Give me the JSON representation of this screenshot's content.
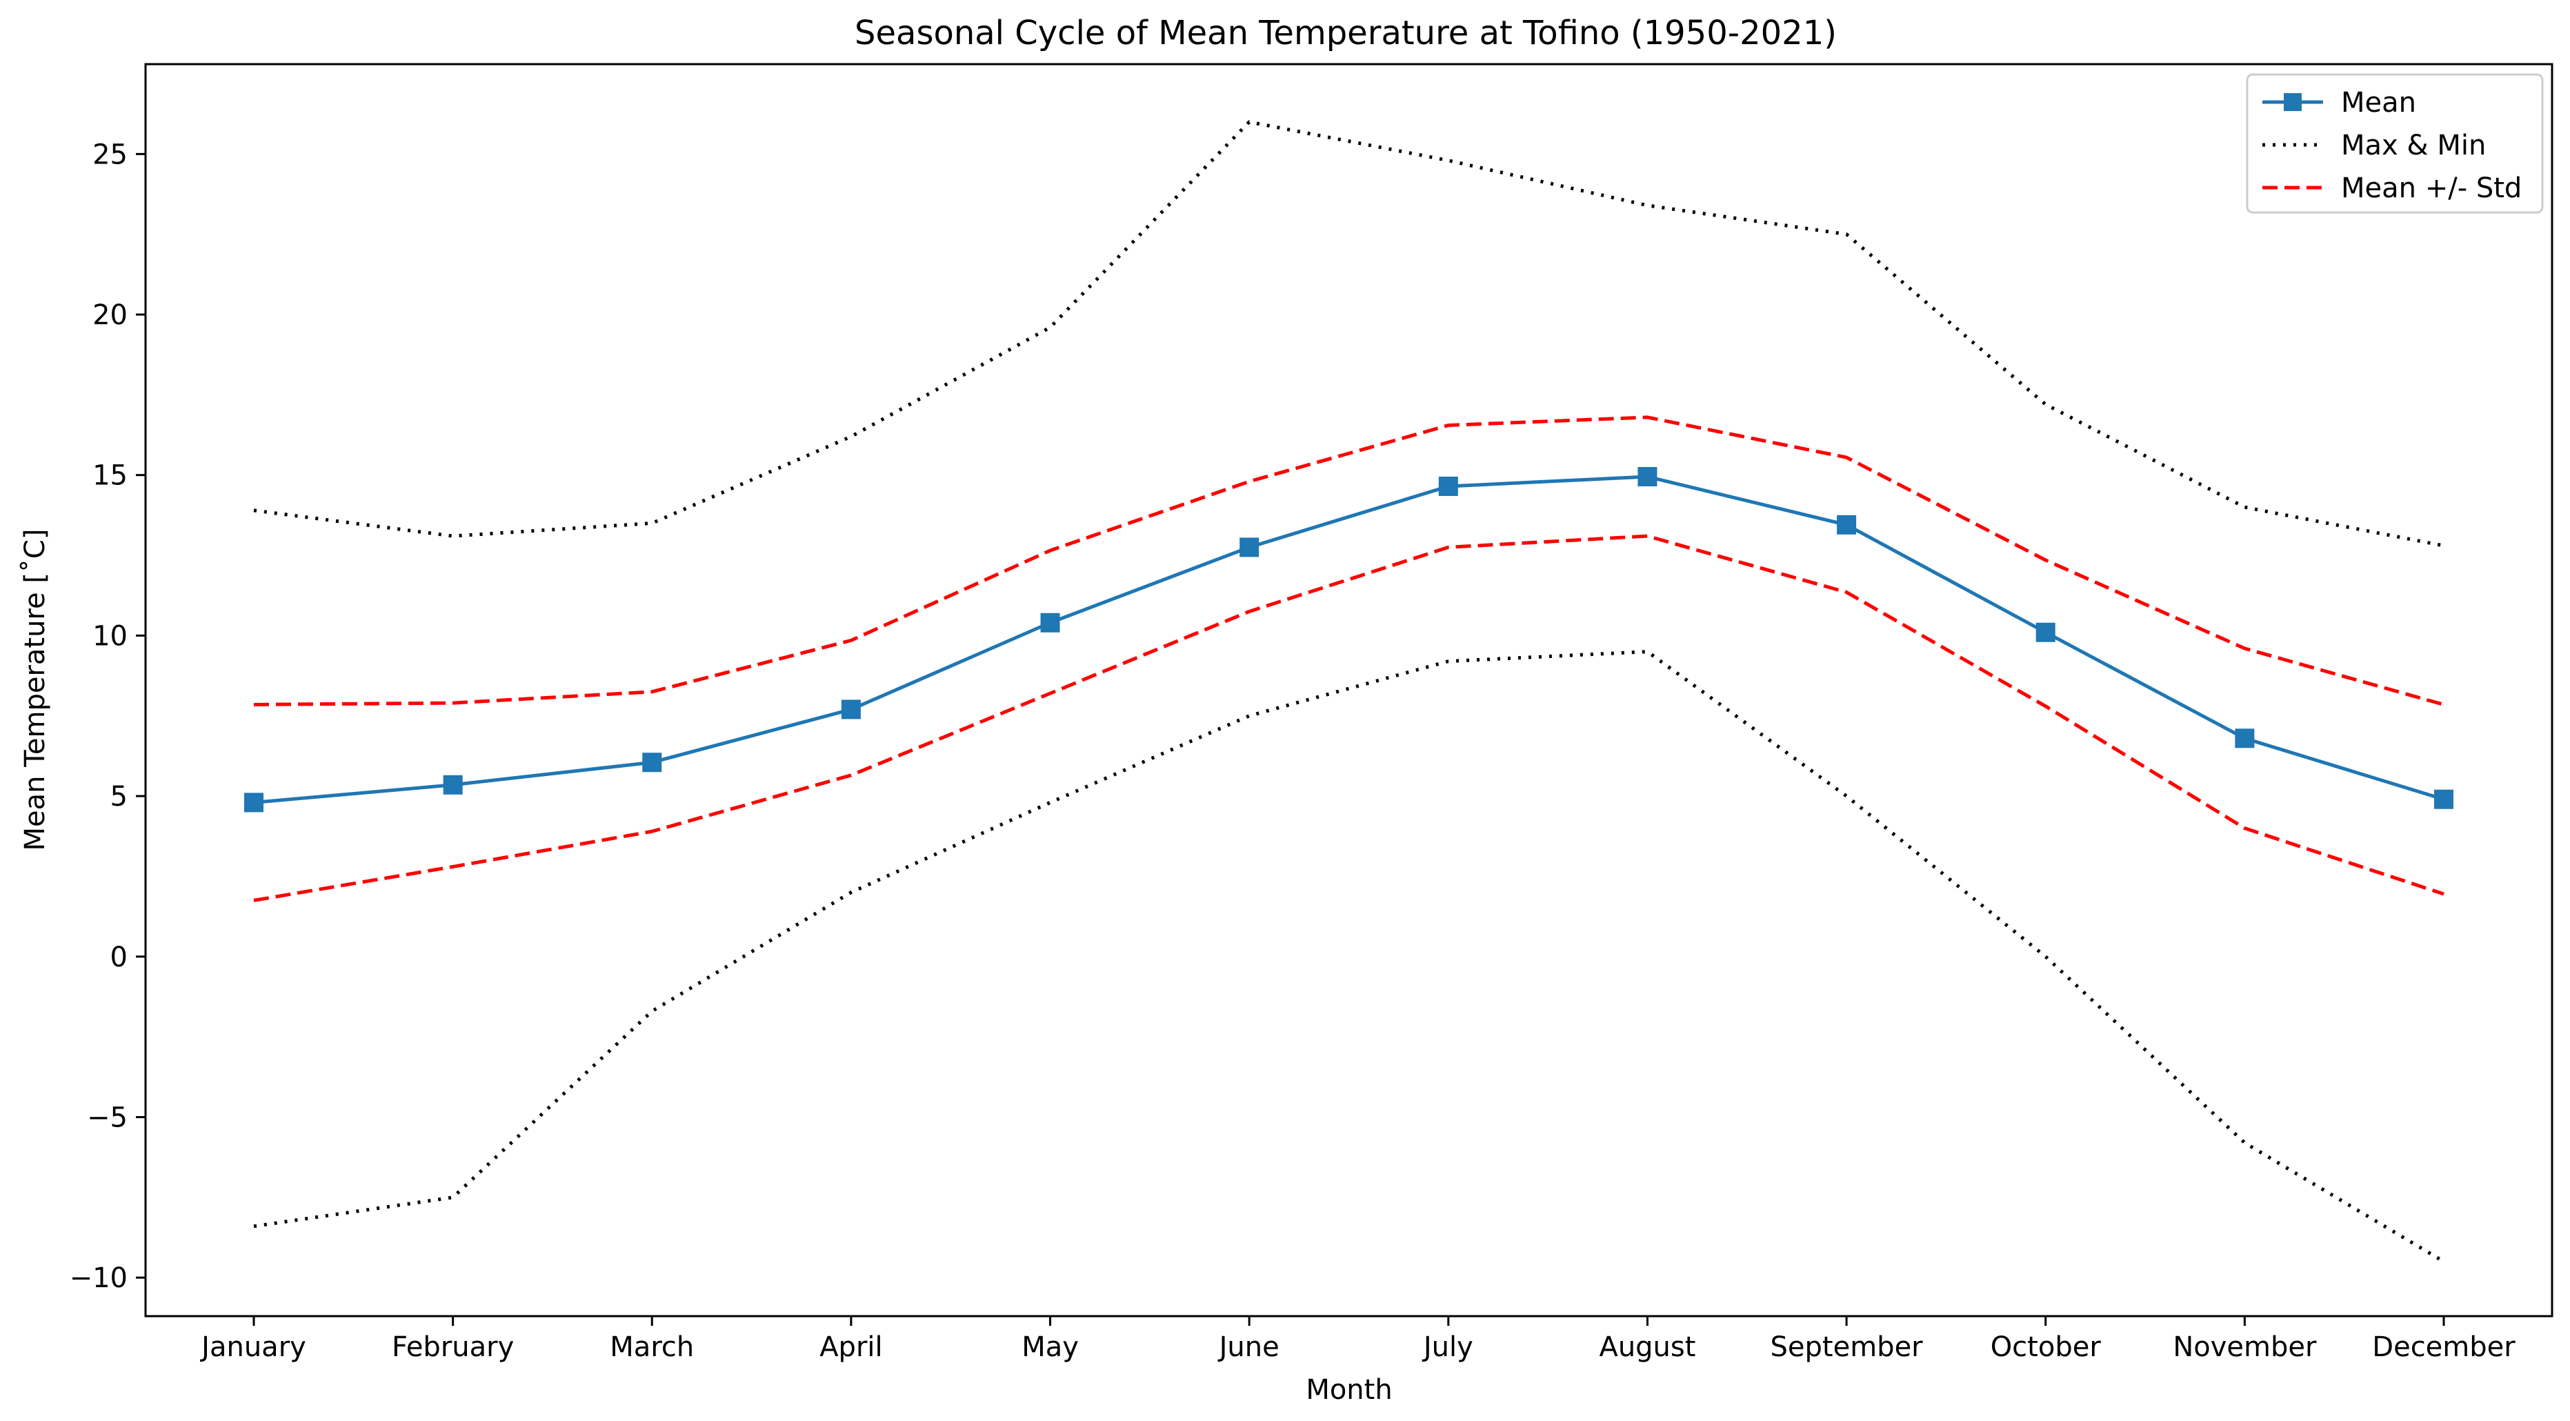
{
  "chart_data": {
    "type": "line",
    "title": "Seasonal Cycle of Mean Temperature at Tofino (1950-2021)",
    "xlabel": "Month",
    "ylabel": "Mean Temperature [˚C]",
    "categories": [
      "January",
      "February",
      "March",
      "April",
      "May",
      "June",
      "July",
      "August",
      "September",
      "October",
      "November",
      "December"
    ],
    "ylim": [
      -11.2,
      27.8
    ],
    "yticks": [
      -10,
      -5,
      0,
      5,
      10,
      15,
      20,
      25
    ],
    "ytick_labels": [
      "−10",
      "−5",
      "0",
      "5",
      "10",
      "15",
      "20",
      "25"
    ],
    "grid": false,
    "legend_position": "top-right",
    "series": [
      {
        "name": "Mean",
        "style": "solid",
        "marker": "square",
        "color": "#1f77b4",
        "values": [
          4.8,
          5.35,
          6.05,
          7.7,
          10.4,
          12.75,
          14.65,
          14.95,
          13.45,
          10.1,
          6.8,
          4.9
        ]
      },
      {
        "name": "Max & Min",
        "style": "dotted",
        "color": "#000000",
        "values": [
          13.9,
          13.1,
          13.5,
          16.2,
          19.6,
          26.0,
          24.8,
          23.4,
          22.5,
          17.2,
          14.0,
          12.8
        ]
      },
      {
        "name": "",
        "legend_group": "Max & Min",
        "style": "dotted",
        "color": "#000000",
        "values": [
          -8.4,
          -7.5,
          -1.7,
          2.0,
          4.8,
          7.5,
          9.2,
          9.5,
          5.0,
          0.0,
          -5.8,
          -9.5
        ]
      },
      {
        "name": "Mean +/- Std",
        "style": "dashed",
        "color": "#ff0000",
        "values": [
          7.85,
          7.9,
          8.25,
          9.85,
          12.65,
          14.8,
          16.55,
          16.8,
          15.55,
          12.35,
          9.6,
          7.85
        ]
      },
      {
        "name": "",
        "legend_group": "Mean +/- Std",
        "style": "dashed",
        "color": "#ff0000",
        "values": [
          1.75,
          2.8,
          3.9,
          5.65,
          8.2,
          10.75,
          12.75,
          13.1,
          11.35,
          7.8,
          4.0,
          1.95
        ]
      }
    ]
  },
  "legend": [
    {
      "label": "Mean",
      "style": "solid",
      "marker": "square",
      "color": "#1f77b4"
    },
    {
      "label": "Max & Min",
      "style": "dotted",
      "color": "#000000"
    },
    {
      "label": "Mean +/- Std",
      "style": "dashed",
      "color": "#ff0000"
    }
  ]
}
